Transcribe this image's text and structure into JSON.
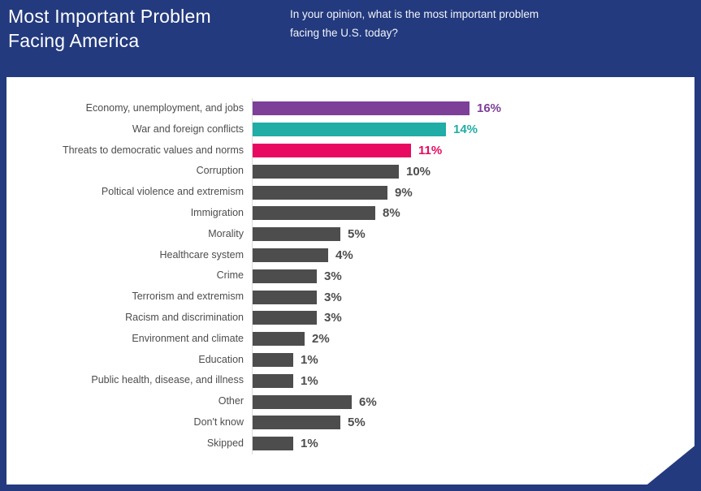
{
  "header": {
    "title_line1": "Most Important Problem",
    "title_line2": "Facing America",
    "subtitle": "In your opinion, what is the most important problem facing the U.S. today?"
  },
  "colors": {
    "navy_background": "#233A7E",
    "card_background": "#FFFFFF",
    "purple_accent": "#7D3F98",
    "teal_accent": "#1FADA6",
    "pink_accent": "#E80A60",
    "bar_gray": "#4D4D4D",
    "category_label_gray": "#4D4D4D",
    "axis_line_gray": "#DCDCDC",
    "title_text": "#FFFFFF"
  },
  "chart_data": {
    "type": "bar",
    "orientation": "horizontal",
    "title": "Most Important Problem Facing America",
    "question": "In your opinion, what is the most important problem facing the U.S. today?",
    "xlabel": "",
    "ylabel": "",
    "xlim": [
      0,
      18
    ],
    "grid": false,
    "legend": "none",
    "value_label_position": "end-of-bar",
    "categories": [
      "Economy, unemployment, and jobs",
      "War and foreign conflicts",
      "Threats to democratic values and norms",
      "Corruption",
      "Poltical violence and extremism",
      "Immigration",
      "Morality",
      "Healthcare system",
      "Crime",
      "Terrorism and extremism",
      "Racism and discrimination",
      "Environment and climate",
      "Education",
      "Public health, disease, and illness",
      "Other",
      "Don't know",
      "Skipped"
    ],
    "values": [
      16,
      14,
      11,
      10,
      9,
      8,
      5,
      4,
      3,
      3,
      3,
      2,
      1,
      1,
      6,
      5,
      1
    ],
    "value_labels": [
      "16%",
      "14%",
      "11%",
      "10%",
      "9%",
      "8%",
      "5%",
      "4%",
      "3%",
      "3%",
      "3%",
      "2%",
      "1%",
      "1%",
      "6%",
      "5%",
      "1%"
    ],
    "bar_colors": [
      "#7D3F98",
      "#1FADA6",
      "#E80A60",
      "#4D4D4D",
      "#4D4D4D",
      "#4D4D4D",
      "#4D4D4D",
      "#4D4D4D",
      "#4D4D4D",
      "#4D4D4D",
      "#4D4D4D",
      "#4D4D4D",
      "#4D4D4D",
      "#4D4D4D",
      "#4D4D4D",
      "#4D4D4D",
      "#4D4D4D"
    ]
  }
}
